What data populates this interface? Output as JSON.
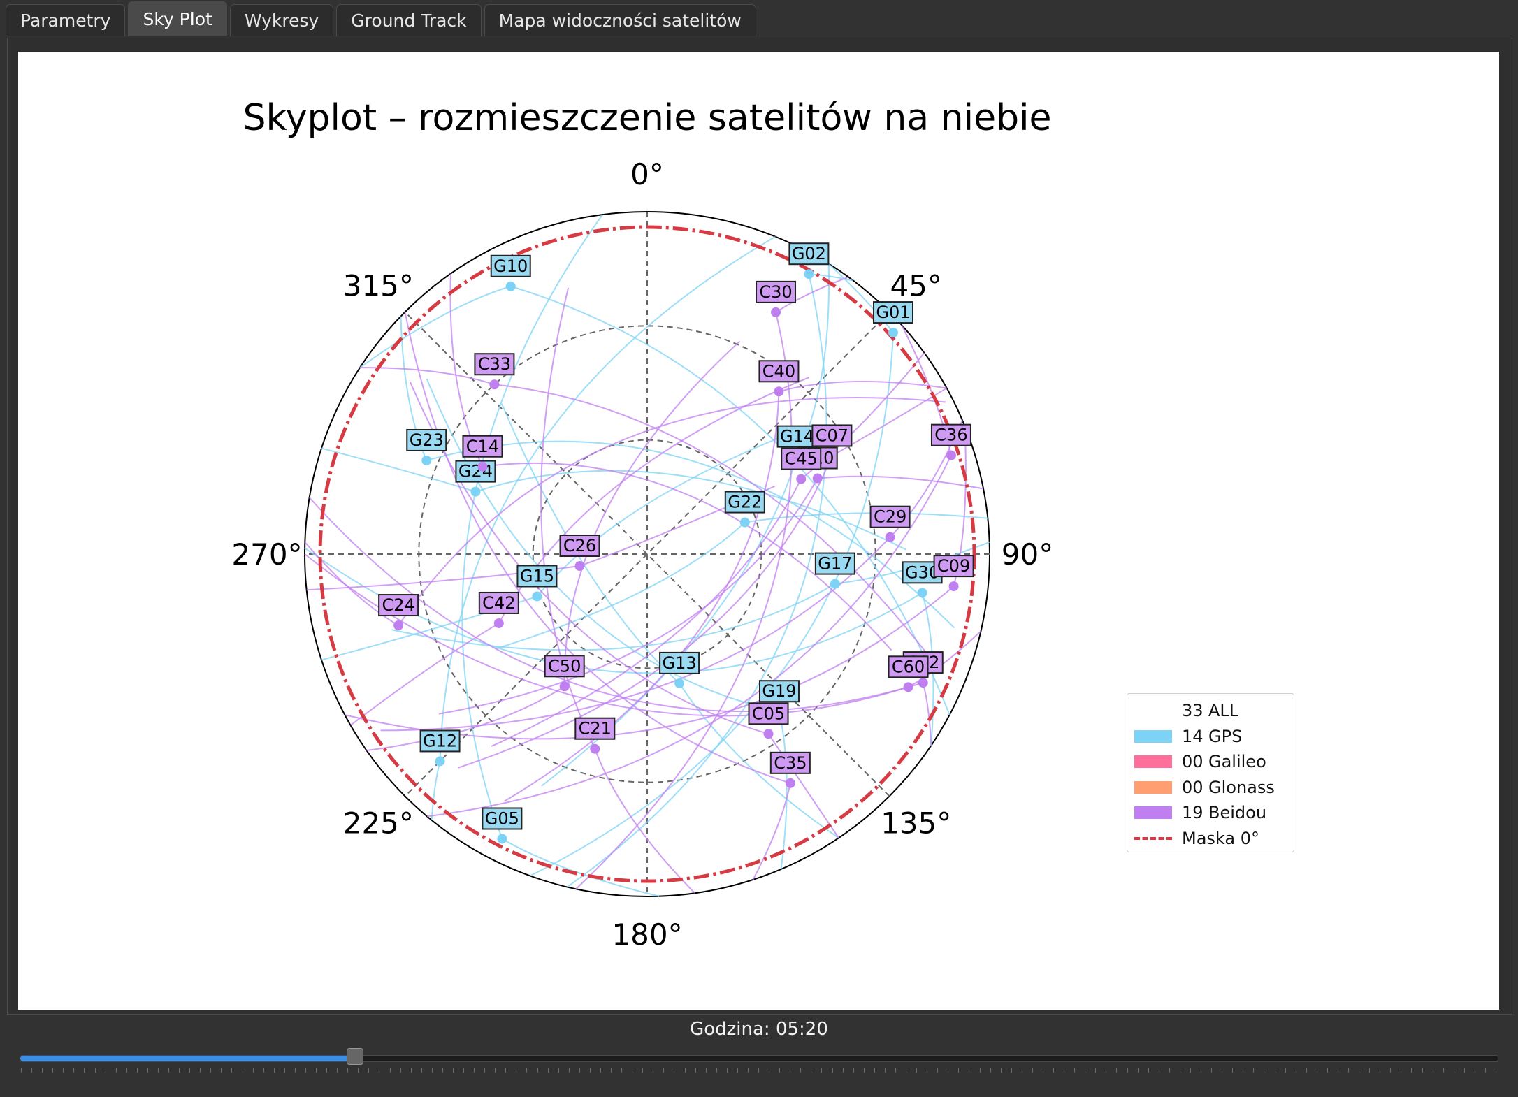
{
  "tabs": [
    {
      "label": "Parametry",
      "active": false
    },
    {
      "label": "Sky Plot",
      "active": true
    },
    {
      "label": "Wykresy",
      "active": false
    },
    {
      "label": "Ground Track",
      "active": false
    },
    {
      "label": "Mapa widoczności satelitów",
      "active": false
    }
  ],
  "time_label": "Godzina: 05:20",
  "slider": {
    "progress_fraction": 0.227
  },
  "colors": {
    "gps": "#7dd3f5",
    "galileo": "#ff6f9c",
    "glonass": "#ff9e70",
    "beidou": "#c07ff0",
    "mask": "#d63a43"
  },
  "legend": [
    {
      "count": "33",
      "label": "ALL",
      "color": "#ffffff"
    },
    {
      "count": "14",
      "label": "GPS",
      "color": "#7dd3f5"
    },
    {
      "count": "00",
      "label": "Galileo",
      "color": "#ff6f9c"
    },
    {
      "count": "00",
      "label": "Glonass",
      "color": "#ff9e70"
    },
    {
      "count": "19",
      "label": "Beidou",
      "color": "#c07ff0"
    },
    {
      "count": "",
      "label": "Maska 0°",
      "color": "#d63a43"
    }
  ],
  "chart_data": {
    "type": "scatter",
    "projection": "polar-skyplot",
    "title": "Skyplot – rozmieszczenie satelitów na niebie",
    "azimuth_tick_labels": [
      "0°",
      "45°",
      "90°",
      "135°",
      "180°",
      "225°",
      "270°",
      "315°"
    ],
    "elevation_rings_deg": [
      30,
      60
    ],
    "mask_elevation_deg": 0,
    "satellites": [
      {
        "id": "G10",
        "system": "GPS",
        "az": 333,
        "el": 11
      },
      {
        "id": "G02",
        "system": "GPS",
        "az": 30,
        "el": 5
      },
      {
        "id": "G01",
        "system": "GPS",
        "az": 48,
        "el": 3
      },
      {
        "id": "G23",
        "system": "GPS",
        "az": 293,
        "el": 27
      },
      {
        "id": "G24",
        "system": "GPS",
        "az": 290,
        "el": 42
      },
      {
        "id": "G14",
        "system": "GPS",
        "az": 57,
        "el": 43
      },
      {
        "id": "G22",
        "system": "GPS",
        "az": 72,
        "el": 63
      },
      {
        "id": "G17",
        "system": "GPS",
        "az": 99,
        "el": 40
      },
      {
        "id": "G30",
        "system": "GPS",
        "az": 98,
        "el": 17
      },
      {
        "id": "G15",
        "system": "GPS",
        "az": 249,
        "el": 59
      },
      {
        "id": "G13",
        "system": "GPS",
        "az": 166,
        "el": 55
      },
      {
        "id": "G19",
        "system": "GPS",
        "az": 140,
        "el": 36
      },
      {
        "id": "G12",
        "system": "GPS",
        "az": 225,
        "el": 13
      },
      {
        "id": "G05",
        "system": "GPS",
        "az": 207,
        "el": 6
      },
      {
        "id": "C30",
        "system": "Beidou",
        "az": 28,
        "el": 18
      },
      {
        "id": "C33",
        "system": "Beidou",
        "az": 318,
        "el": 30
      },
      {
        "id": "C40",
        "system": "Beidou",
        "az": 39,
        "el": 35
      },
      {
        "id": "C07",
        "system": "Beidou",
        "az": 62,
        "el": 35
      },
      {
        "id": "C36",
        "system": "Beidou",
        "az": 72,
        "el": 6
      },
      {
        "id": "C10",
        "system": "Beidou",
        "az": 66,
        "el": 41
      },
      {
        "id": "C45",
        "system": "Beidou",
        "az": 64,
        "el": 45
      },
      {
        "id": "C14",
        "system": "Beidou",
        "az": 298,
        "el": 41
      },
      {
        "id": "C26",
        "system": "Beidou",
        "az": 260,
        "el": 72
      },
      {
        "id": "C29",
        "system": "Beidou",
        "az": 86,
        "el": 26
      },
      {
        "id": "C24",
        "system": "Beidou",
        "az": 254,
        "el": 22
      },
      {
        "id": "C42",
        "system": "Beidou",
        "az": 245,
        "el": 47
      },
      {
        "id": "C09",
        "system": "Beidou",
        "az": 96,
        "el": 9
      },
      {
        "id": "C02",
        "system": "Beidou",
        "az": 115,
        "el": 10
      },
      {
        "id": "C60",
        "system": "Beidou",
        "az": 117,
        "el": 13
      },
      {
        "id": "C50",
        "system": "Beidou",
        "az": 212,
        "el": 49
      },
      {
        "id": "C05",
        "system": "Beidou",
        "az": 146,
        "el": 33
      },
      {
        "id": "C21",
        "system": "Beidou",
        "az": 195,
        "el": 37
      },
      {
        "id": "C35",
        "system": "Beidou",
        "az": 148,
        "el": 19
      }
    ]
  }
}
